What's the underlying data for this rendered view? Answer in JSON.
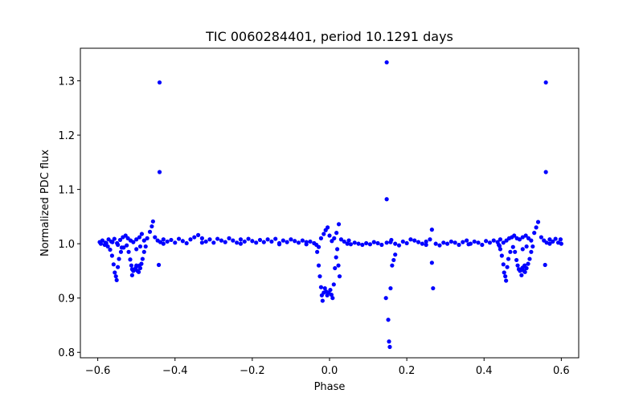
{
  "chart_data": {
    "type": "scatter",
    "title": "TIC 0060284401, period 10.1291 days",
    "xlabel": "Phase",
    "ylabel": "Normalized PDC flux",
    "xlim": [
      -0.645,
      0.645
    ],
    "ylim": [
      0.79,
      1.36
    ],
    "xticks": [
      -0.6,
      -0.4,
      -0.2,
      0.0,
      0.2,
      0.4,
      0.6
    ],
    "xtick_labels": [
      "−0.6",
      "−0.4",
      "−0.2",
      "0.0",
      "0.2",
      "0.4",
      "0.6"
    ],
    "yticks": [
      0.8,
      0.9,
      1.0,
      1.1,
      1.2,
      1.3
    ],
    "ytick_labels": [
      "0.8",
      "0.9",
      "1.0",
      "1.1",
      "1.2",
      "1.3"
    ],
    "grid": false,
    "marker_color": "#0000ff",
    "series": [
      {
        "points": [
          [
            -0.595,
            1.003
          ],
          [
            -0.588,
            1.006
          ],
          [
            -0.58,
            1.002
          ],
          [
            -0.572,
            1.008
          ],
          [
            -0.565,
            1.004
          ],
          [
            -0.557,
            1.009
          ],
          [
            -0.55,
            1.001
          ],
          [
            -0.542,
            1.007
          ],
          [
            -0.535,
            1.012
          ],
          [
            -0.528,
            1.015
          ],
          [
            -0.522,
            1.01
          ],
          [
            -0.515,
            1.006
          ],
          [
            -0.508,
            1.003
          ],
          [
            -0.5,
            1.008
          ],
          [
            -0.492,
            1.012
          ],
          [
            -0.486,
            1.018
          ],
          [
            -0.48,
            1.006
          ],
          [
            -0.472,
            1.01
          ],
          [
            -0.465,
            1.022
          ],
          [
            -0.46,
            1.032
          ],
          [
            -0.457,
            1.041
          ],
          [
            -0.452,
            1.012
          ],
          [
            -0.445,
            1.006
          ],
          [
            -0.438,
            1.003
          ],
          [
            -0.43,
            1.008
          ],
          [
            -0.42,
            1.004
          ],
          [
            -0.41,
            1.007
          ],
          [
            -0.4,
            1.002
          ],
          [
            -0.39,
            1.009
          ],
          [
            -0.38,
            1.005
          ],
          [
            -0.37,
            1.001
          ],
          [
            -0.36,
            1.008
          ],
          [
            -0.35,
            1.012
          ],
          [
            -0.34,
            1.016
          ],
          [
            -0.33,
            1.01
          ],
          [
            -0.32,
            1.004
          ],
          [
            -0.31,
            1.008
          ],
          [
            -0.3,
            1.002
          ],
          [
            -0.29,
            1.009
          ],
          [
            -0.28,
            1.006
          ],
          [
            -0.27,
            1.003
          ],
          [
            -0.26,
            1.01
          ],
          [
            -0.25,
            1.006
          ],
          [
            -0.24,
            1.002
          ],
          [
            -0.23,
            1.008
          ],
          [
            -0.22,
            1.004
          ],
          [
            -0.21,
            1.009
          ],
          [
            -0.2,
            1.005
          ],
          [
            -0.19,
            1.002
          ],
          [
            -0.18,
            1.007
          ],
          [
            -0.17,
            1.003
          ],
          [
            -0.16,
            1.008
          ],
          [
            -0.15,
            1.004
          ],
          [
            -0.14,
            1.009
          ],
          [
            -0.13,
            1.001
          ],
          [
            -0.12,
            1.006
          ],
          [
            -0.11,
            1.003
          ],
          [
            -0.1,
            1.008
          ],
          [
            -0.09,
            1.005
          ],
          [
            -0.08,
            1.002
          ],
          [
            -0.07,
            1.006
          ],
          [
            -0.06,
            1.003
          ],
          [
            -0.05,
            1.004
          ],
          [
            -0.04,
            1.001
          ],
          [
            -0.034,
            0.998
          ],
          [
            -0.028,
            0.994
          ],
          [
            -0.022,
            1.01
          ],
          [
            -0.015,
            1.018
          ],
          [
            -0.01,
            1.025
          ],
          [
            -0.005,
            1.03
          ],
          [
            0.0,
            1.015
          ],
          [
            0.006,
            1.005
          ],
          [
            0.012,
            1.01
          ],
          [
            0.018,
            1.02
          ],
          [
            0.024,
            1.036
          ],
          [
            0.03,
            1.008
          ],
          [
            0.038,
            1.004
          ],
          [
            0.046,
            1.0
          ],
          [
            0.055,
            0.999
          ],
          [
            0.065,
            1.002
          ],
          [
            0.075,
            1.0
          ],
          [
            0.085,
            0.998
          ],
          [
            0.095,
            1.001
          ],
          [
            0.105,
            0.999
          ],
          [
            0.115,
            1.003
          ],
          [
            0.125,
            1.001
          ],
          [
            0.135,
            0.998
          ],
          [
            0.148,
            1.002
          ],
          [
            0.158,
            1.003
          ],
          [
            0.17,
            1.0
          ],
          [
            0.18,
            0.997
          ],
          [
            0.19,
            1.004
          ],
          [
            0.2,
            1.001
          ],
          [
            0.21,
            1.008
          ],
          [
            0.22,
            1.006
          ],
          [
            0.23,
            1.003
          ],
          [
            0.24,
            1.0
          ],
          [
            0.25,
            1.004
          ],
          [
            0.26,
            1.008
          ],
          [
            0.265,
            1.026
          ],
          [
            0.275,
            1.0
          ],
          [
            0.285,
            0.997
          ],
          [
            0.295,
            1.002
          ],
          [
            0.305,
            1.0
          ],
          [
            0.315,
            1.004
          ],
          [
            0.325,
            1.002
          ],
          [
            0.335,
            0.998
          ],
          [
            0.345,
            1.003
          ],
          [
            0.355,
            1.006
          ],
          [
            0.365,
            1.0
          ],
          [
            0.375,
            1.004
          ],
          [
            0.385,
            1.002
          ],
          [
            0.395,
            0.998
          ],
          [
            0.405,
            1.005
          ],
          [
            0.415,
            1.002
          ],
          [
            0.425,
            1.006
          ],
          [
            0.435,
            1.003
          ],
          [
            0.442,
            1.008
          ],
          [
            0.45,
            1.002
          ],
          [
            0.458,
            1.006
          ],
          [
            0.465,
            1.01
          ],
          [
            0.472,
            1.012
          ],
          [
            0.478,
            1.015
          ],
          [
            0.485,
            1.01
          ],
          [
            0.492,
            1.008
          ],
          [
            0.5,
            1.012
          ],
          [
            0.508,
            1.015
          ],
          [
            0.515,
            1.01
          ],
          [
            0.522,
            1.006
          ],
          [
            0.53,
            1.02
          ],
          [
            0.535,
            1.03
          ],
          [
            0.54,
            1.04
          ],
          [
            0.548,
            1.012
          ],
          [
            0.555,
            1.006
          ],
          [
            0.562,
            1.002
          ],
          [
            0.57,
            1.008
          ],
          [
            0.578,
            1.004
          ],
          [
            0.585,
            1.009
          ],
          [
            0.592,
            1.002
          ],
          [
            0.598,
            1.008
          ],
          [
            -0.592,
            1.0
          ],
          [
            -0.578,
            1.001
          ],
          [
            -0.562,
            1.003
          ],
          [
            -0.548,
            0.998
          ],
          [
            -0.538,
            0.993
          ],
          [
            -0.5,
            0.99
          ],
          [
            -0.49,
            0.995
          ],
          [
            -0.43,
            1.0
          ],
          [
            -0.33,
            1.002
          ],
          [
            -0.23,
            1.0
          ],
          [
            -0.13,
            0.999
          ],
          [
            -0.06,
            0.999
          ],
          [
            0.05,
            1.006
          ],
          [
            0.16,
            1.007
          ],
          [
            0.25,
            0.998
          ],
          [
            0.36,
            0.999
          ],
          [
            0.44,
            0.996
          ],
          [
            0.5,
            0.99
          ],
          [
            0.51,
            0.995
          ],
          [
            0.57,
            1.0
          ],
          [
            0.6,
            1.0
          ],
          [
            -0.582,
            0.998
          ],
          [
            -0.574,
            0.995
          ],
          [
            -0.568,
            0.989
          ],
          [
            -0.563,
            0.978
          ],
          [
            -0.559,
            0.962
          ],
          [
            -0.556,
            0.947
          ],
          [
            -0.553,
            0.94
          ],
          [
            -0.551,
            0.933
          ],
          [
            -0.548,
            0.957
          ],
          [
            -0.545,
            0.972
          ],
          [
            -0.54,
            0.985
          ],
          [
            -0.533,
            0.993
          ],
          [
            -0.525,
            0.997
          ],
          [
            -0.52,
            0.985
          ],
          [
            -0.516,
            0.971
          ],
          [
            -0.513,
            0.96
          ],
          [
            -0.511,
            0.953
          ],
          [
            -0.508,
            0.95
          ],
          [
            -0.505,
            0.952
          ],
          [
            -0.502,
            0.955
          ],
          [
            -0.5,
            0.958
          ],
          [
            -0.497,
            0.95
          ],
          [
            -0.494,
            0.948
          ],
          [
            -0.49,
            0.955
          ],
          [
            -0.487,
            0.963
          ],
          [
            -0.484,
            0.972
          ],
          [
            -0.48,
            0.985
          ],
          [
            -0.476,
            0.995
          ],
          [
            -0.511,
            0.942
          ],
          [
            -0.5,
            0.96
          ],
          [
            -0.492,
            0.96
          ],
          [
            -0.442,
            0.961
          ],
          [
            0.438,
            0.998
          ],
          [
            0.442,
            0.99
          ],
          [
            0.446,
            0.978
          ],
          [
            0.45,
            0.962
          ],
          [
            0.452,
            0.947
          ],
          [
            0.455,
            0.94
          ],
          [
            0.457,
            0.932
          ],
          [
            0.46,
            0.957
          ],
          [
            0.463,
            0.972
          ],
          [
            0.468,
            0.985
          ],
          [
            0.475,
            0.994
          ],
          [
            0.48,
            0.985
          ],
          [
            0.484,
            0.97
          ],
          [
            0.487,
            0.96
          ],
          [
            0.49,
            0.953
          ],
          [
            0.493,
            0.95
          ],
          [
            0.496,
            0.953
          ],
          [
            0.5,
            0.956
          ],
          [
            0.503,
            0.95
          ],
          [
            0.506,
            0.948
          ],
          [
            0.51,
            0.955
          ],
          [
            0.514,
            0.963
          ],
          [
            0.518,
            0.972
          ],
          [
            0.522,
            0.985
          ],
          [
            0.526,
            0.995
          ],
          [
            0.497,
            0.942
          ],
          [
            0.505,
            0.96
          ],
          [
            0.558,
            0.961
          ],
          [
            -0.032,
            0.985
          ],
          [
            -0.028,
            0.96
          ],
          [
            -0.025,
            0.94
          ],
          [
            -0.022,
            0.92
          ],
          [
            -0.02,
            0.905
          ],
          [
            -0.018,
            0.895
          ],
          [
            -0.015,
            0.91
          ],
          [
            -0.012,
            0.918
          ],
          [
            -0.009,
            0.912
          ],
          [
            -0.006,
            0.905
          ],
          [
            -0.002,
            0.91
          ],
          [
            0.002,
            0.915
          ],
          [
            0.005,
            0.906
          ],
          [
            0.008,
            0.9
          ],
          [
            0.011,
            0.925
          ],
          [
            0.014,
            0.955
          ],
          [
            0.017,
            0.975
          ],
          [
            0.02,
            0.99
          ],
          [
            0.023,
            0.96
          ],
          [
            0.026,
            0.94
          ],
          [
            0.146,
            0.9
          ],
          [
            0.152,
            0.86
          ],
          [
            0.154,
            0.82
          ],
          [
            0.156,
            0.81
          ],
          [
            0.158,
            0.918
          ],
          [
            0.162,
            0.96
          ],
          [
            0.166,
            0.97
          ],
          [
            0.17,
            0.98
          ],
          [
            0.265,
            0.965
          ],
          [
            0.268,
            0.918
          ],
          [
            -0.44,
            1.297
          ],
          [
            -0.44,
            1.132
          ],
          [
            0.148,
            1.334
          ],
          [
            0.148,
            1.082
          ],
          [
            0.56,
            1.297
          ],
          [
            0.56,
            1.132
          ]
        ]
      }
    ]
  }
}
